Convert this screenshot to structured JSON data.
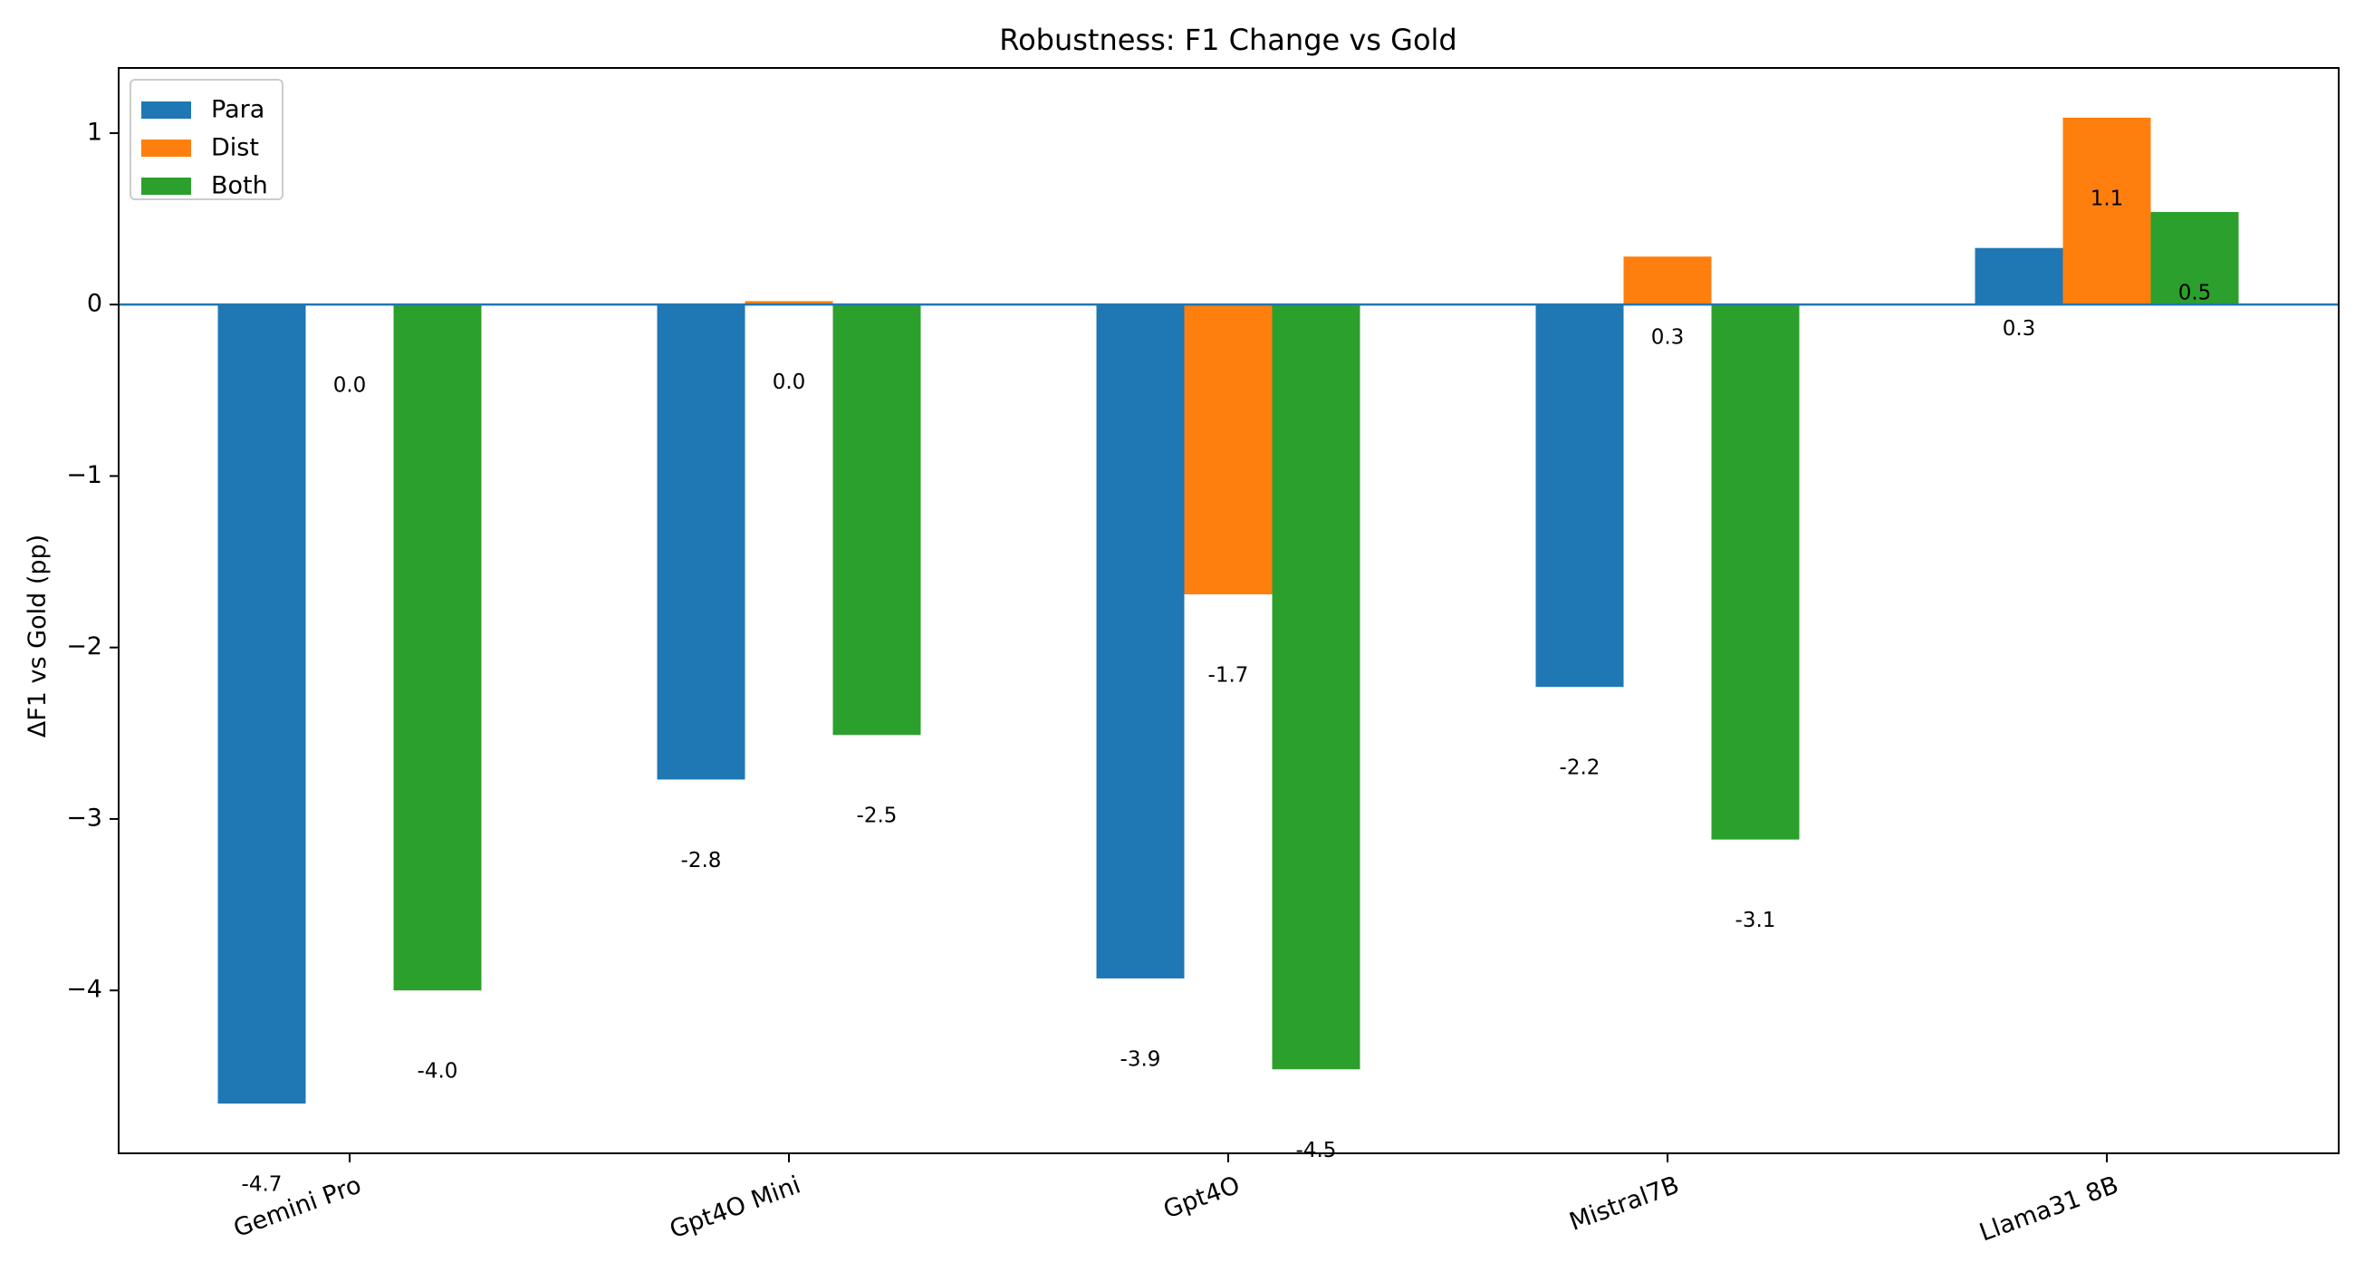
{
  "chart_data": {
    "type": "bar",
    "title": "Robustness: F1 Change vs Gold",
    "xlabel": "",
    "ylabel": "ΔF1 vs Gold (pp)",
    "categories": [
      "Gemini Pro",
      "Gpt4O Mini",
      "Gpt4O",
      "Mistral7B",
      "Llama31 8B"
    ],
    "series": [
      {
        "name": "Para",
        "color": "#1f77b4",
        "values": [
          -4.66,
          -2.77,
          -3.93,
          -2.23,
          0.33
        ],
        "labels": [
          "-4.7",
          "-2.8",
          "-3.9",
          "-2.2",
          "0.3"
        ]
      },
      {
        "name": "Dist",
        "color": "#ff7f0e",
        "values": [
          0.0,
          0.02,
          -1.69,
          0.28,
          1.09
        ],
        "labels": [
          "0.0",
          "0.0",
          "-1.7",
          "0.3",
          "1.1"
        ]
      },
      {
        "name": "Both",
        "color": "#2ca02c",
        "values": [
          -4.0,
          -2.51,
          -4.46,
          -3.12,
          0.54
        ],
        "labels": [
          "-4.0",
          "-2.5",
          "-4.5",
          "-3.1",
          "0.5"
        ]
      }
    ],
    "ylim": [
      -4.95,
      1.38
    ],
    "yticks": [
      1,
      0,
      -1,
      -2,
      -3,
      -4
    ],
    "ytick_labels": [
      "1",
      "0",
      "−1",
      "−2",
      "−3",
      "−4"
    ],
    "legend_position": "top-left",
    "grid": false,
    "zero_line_color": "#1f77b4"
  }
}
